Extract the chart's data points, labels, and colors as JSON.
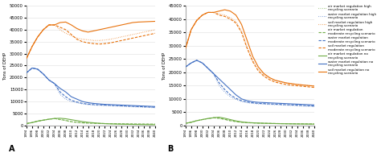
{
  "years": [
    1994,
    1996,
    1998,
    2000,
    2002,
    2004,
    2006,
    2008,
    2010,
    2012,
    2014,
    2016,
    2018,
    2020,
    2022,
    2024,
    2026,
    2028,
    2030,
    2032,
    2034,
    2036,
    2038,
    2040
  ],
  "panel_A": {
    "soil_no_recycling": [
      28000,
      33000,
      37000,
      40000,
      42000,
      42000,
      43000,
      43200,
      42000,
      40500,
      39500,
      39000,
      39500,
      40000,
      40500,
      41000,
      41500,
      42000,
      42500,
      43000,
      43200,
      43300,
      43400,
      43500
    ],
    "water_no_recycling": [
      22000,
      24000,
      23500,
      21500,
      19000,
      17500,
      15500,
      14000,
      12000,
      11000,
      10000,
      9500,
      9200,
      9000,
      8800,
      8700,
      8600,
      8500,
      8400,
      8300,
      8200,
      8100,
      8000,
      7900
    ],
    "air_no_recycling": [
      800,
      1200,
      1800,
      2200,
      2600,
      2900,
      3000,
      2800,
      2400,
      2000,
      1600,
      1300,
      1100,
      900,
      750,
      650,
      580,
      520,
      470,
      430,
      390,
      360,
      330,
      310
    ],
    "soil_mod_recycling": [
      28000,
      33000,
      37000,
      40000,
      42000,
      42000,
      41000,
      40000,
      38000,
      36000,
      35000,
      34500,
      34200,
      34000,
      34200,
      34500,
      35000,
      35500,
      36000,
      36500,
      37000,
      37500,
      38000,
      38500
    ],
    "water_mod_recycling": [
      22000,
      24000,
      23500,
      21500,
      19000,
      17500,
      14000,
      12000,
      10500,
      9800,
      9200,
      8900,
      8700,
      8600,
      8500,
      8400,
      8300,
      8200,
      8100,
      8000,
      7900,
      7800,
      7700,
      7600
    ],
    "air_mod_recycling": [
      800,
      1200,
      1800,
      2200,
      2600,
      2900,
      2500,
      2100,
      1600,
      1300,
      1100,
      1000,
      900,
      830,
      780,
      740,
      700,
      670,
      640,
      610,
      590,
      570,
      550,
      530
    ],
    "soil_high_recycling": [
      28000,
      33000,
      37000,
      40000,
      42000,
      42000,
      40000,
      38500,
      37500,
      36500,
      36000,
      35800,
      35500,
      35500,
      35700,
      36000,
      36500,
      37000,
      37500,
      38000,
      38500,
      39000,
      39500,
      40000
    ],
    "water_high_recycling": [
      22000,
      24000,
      23500,
      21500,
      19000,
      17500,
      13000,
      11000,
      10000,
      9500,
      9000,
      8700,
      8500,
      8400,
      8300,
      8200,
      8100,
      8000,
      7900,
      7800,
      7700,
      7600,
      7500,
      7400
    ],
    "air_high_recycling": [
      800,
      1200,
      1800,
      2200,
      2600,
      2900,
      2400,
      2000,
      1500,
      1200,
      1050,
      950,
      860,
      800,
      760,
      720,
      690,
      660,
      640,
      620,
      600,
      580,
      560,
      545
    ]
  },
  "panel_B": {
    "soil_no_recycling": [
      29000,
      36000,
      39500,
      41500,
      42500,
      42500,
      43000,
      43500,
      43000,
      41500,
      38000,
      32000,
      26000,
      22000,
      19500,
      18000,
      17000,
      16500,
      16000,
      15700,
      15400,
      15200,
      15000,
      14800
    ],
    "water_no_recycling": [
      22000,
      23500,
      24500,
      23500,
      21500,
      19500,
      17500,
      15500,
      13500,
      11500,
      10000,
      9300,
      8900,
      8700,
      8600,
      8500,
      8400,
      8300,
      8200,
      8100,
      8000,
      7900,
      7800,
      7700
    ],
    "air_no_recycling": [
      800,
      1200,
      1800,
      2200,
      2600,
      2900,
      3100,
      2700,
      2200,
      1700,
      1350,
      1100,
      1000,
      900,
      820,
      760,
      700,
      660,
      620,
      590,
      560,
      540,
      510,
      490
    ],
    "soil_mod_recycling": [
      29000,
      36000,
      39500,
      41500,
      42500,
      42500,
      41500,
      41000,
      40000,
      38500,
      35000,
      29000,
      24000,
      20500,
      18500,
      17200,
      16300,
      15800,
      15400,
      15100,
      14900,
      14700,
      14500,
      14300
    ],
    "water_mod_recycling": [
      22000,
      23500,
      24500,
      23500,
      21500,
      19500,
      16000,
      13500,
      11500,
      10200,
      9300,
      8800,
      8500,
      8300,
      8200,
      8100,
      8000,
      7900,
      7800,
      7700,
      7600,
      7500,
      7400,
      7300
    ],
    "air_mod_recycling": [
      800,
      1200,
      1800,
      2200,
      2600,
      2900,
      2700,
      2300,
      1800,
      1450,
      1200,
      1050,
      950,
      870,
      810,
      760,
      720,
      690,
      660,
      630,
      610,
      590,
      570,
      550
    ],
    "soil_high_recycling": [
      29000,
      36000,
      39500,
      41500,
      42500,
      42500,
      42000,
      41500,
      40500,
      39000,
      35500,
      29500,
      24500,
      21000,
      19000,
      17700,
      16800,
      16300,
      15900,
      15600,
      15400,
      15200,
      15000,
      14900
    ],
    "water_high_recycling": [
      22000,
      23500,
      24500,
      23500,
      21500,
      19500,
      15000,
      12500,
      10800,
      9800,
      9000,
      8600,
      8300,
      8100,
      8000,
      7900,
      7800,
      7700,
      7600,
      7500,
      7400,
      7300,
      7200,
      7100
    ],
    "air_high_recycling": [
      800,
      1200,
      1800,
      2200,
      2600,
      2900,
      2600,
      2200,
      1700,
      1400,
      1150,
      1000,
      910,
      840,
      790,
      750,
      710,
      680,
      650,
      630,
      610,
      590,
      570,
      555
    ]
  },
  "colors": {
    "orange": "#E8720C",
    "blue": "#4472C4",
    "green": "#70AD47"
  },
  "ylim_A": [
    0,
    50000
  ],
  "ylim_B": [
    0,
    45000
  ],
  "yticks_A": [
    0,
    5000,
    10000,
    15000,
    20000,
    25000,
    30000,
    35000,
    40000,
    45000,
    50000
  ],
  "yticks_B": [
    0,
    5000,
    10000,
    15000,
    20000,
    25000,
    30000,
    35000,
    40000,
    45000
  ],
  "legend_entries": [
    "air market regulation high\nrecycling scenario",
    "water market regulation high\nrecycling scenario",
    "soil market regulation high\nrecycling scenario",
    "air market regulation\nmoderate recycling scenario",
    "water market regulation\nmoderate recycling scenario",
    "soil market regulation\nmoderate recycling scenario",
    "air market regulation no\nrecycling scenario",
    "water market regulation no\nrecycling scenario",
    "soil market regulation no\nrecycling scenario"
  ],
  "panel_labels": [
    "A",
    "B"
  ],
  "ylabel": "Tons of DEHP"
}
